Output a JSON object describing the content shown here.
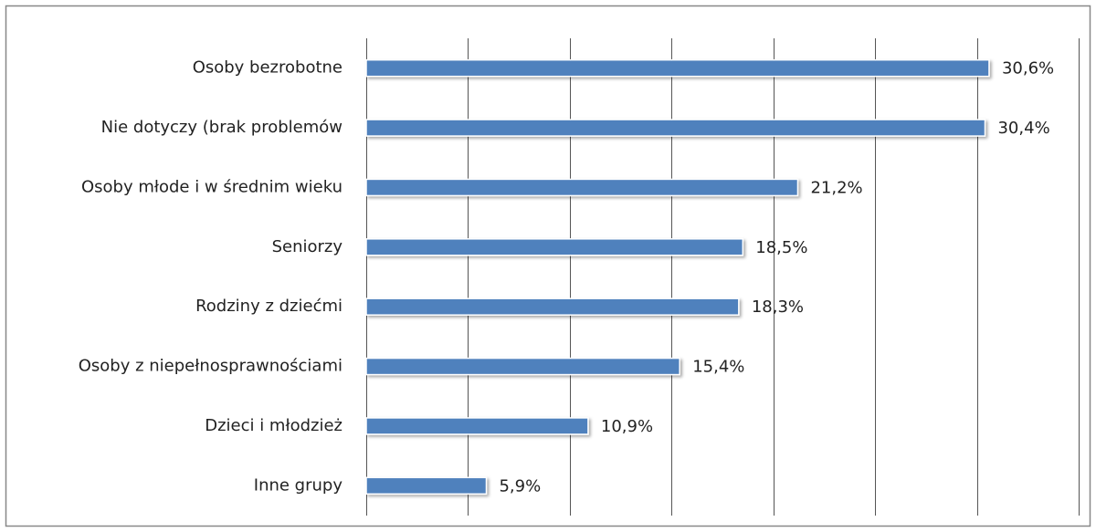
{
  "chart_data": {
    "type": "bar",
    "orientation": "horizontal",
    "categories": [
      "Osoby bezrobotne",
      "Nie dotyczy (brak problemów",
      "Osoby młode i w średnim wieku",
      "Seniorzy",
      "Rodziny z dziećmi",
      "Osoby z niepełnosprawnościami",
      "Dzieci i młodzież",
      "Inne grupy"
    ],
    "values": [
      30.6,
      30.4,
      21.2,
      18.5,
      18.3,
      15.4,
      10.9,
      5.9
    ],
    "value_labels": [
      "30,6%",
      "30,4%",
      "21,2%",
      "18,5%",
      "18,3%",
      "15,4%",
      "10,9%",
      "5,9%"
    ],
    "color": "#4f81bd",
    "xlim": [
      0,
      35
    ],
    "xticks": [
      0,
      5,
      10,
      15,
      20,
      25,
      30,
      35
    ],
    "grid": true
  }
}
